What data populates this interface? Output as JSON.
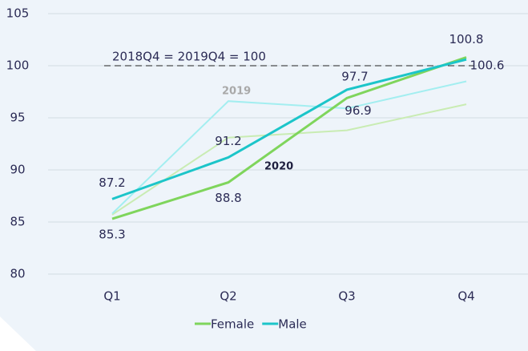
{
  "chart_data": {
    "type": "line",
    "categories": [
      "Q1",
      "Q2",
      "Q3",
      "Q4"
    ],
    "series": [
      {
        "color": "#c9ecb3",
        "values": [
          85.7,
          93.1,
          93.8,
          96.3
        ]
      },
      {
        "color": "#a3eef0",
        "values": [
          85.8,
          96.6,
          95.9,
          98.5
        ]
      },
      {
        "name": "Female",
        "color": "#7fd55c",
        "values": [
          85.3,
          88.8,
          96.9,
          100.8
        ]
      },
      {
        "name": "Male",
        "color": "#1cc5c9",
        "values": [
          87.2,
          91.2,
          97.7,
          100.6
        ]
      }
    ],
    "ylim": [
      80,
      105
    ],
    "yticks": [
      80,
      85,
      90,
      95,
      100,
      105
    ],
    "grid": true,
    "reference_line": 100,
    "annotations": [
      "2018Q4 = 2019Q4 = 100",
      "2019",
      "2020"
    ],
    "legend": "bottom"
  }
}
